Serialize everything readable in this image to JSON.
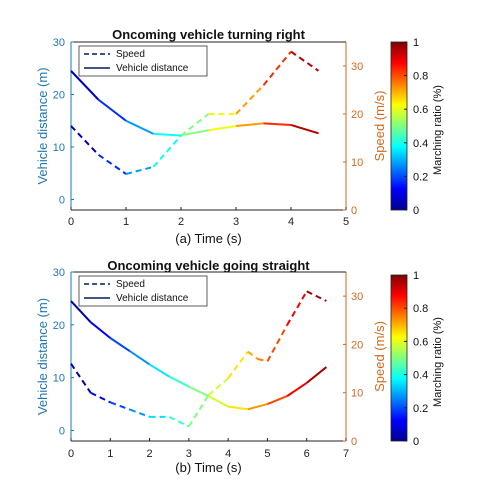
{
  "chart_data": [
    {
      "type": "line",
      "title": "Oncoming vehicle turning right",
      "xlabel": "(a) Time (s)",
      "ylabel_left": "Vehicle distance (m)",
      "ylabel_right": "Speed (m/s)",
      "xlim": [
        0,
        5
      ],
      "ylim_left": [
        -2,
        30
      ],
      "ylim_right": [
        0,
        35
      ],
      "xticks": [
        "0",
        "1",
        "2",
        "3",
        "4",
        "5"
      ],
      "yticks_left": [
        "0",
        "10",
        "20",
        "30"
      ],
      "yticks_right": [
        "0",
        "10",
        "20",
        "30"
      ],
      "legend": [
        "Speed",
        "Vehicle distance"
      ],
      "series": [
        {
          "name": "Speed",
          "axis": "right",
          "style": "dashed",
          "x": [
            0,
            0.5,
            1,
            1.5,
            2,
            2.5,
            3,
            3.5,
            4,
            4.5
          ],
          "y": [
            17.5,
            11.5,
            7.5,
            9,
            15.5,
            20,
            20,
            26,
            33,
            29
          ]
        },
        {
          "name": "Vehicle distance",
          "axis": "left",
          "style": "solid",
          "x": [
            0,
            0.5,
            1,
            1.5,
            2,
            2.5,
            3,
            3.5,
            4,
            4.5
          ],
          "y": [
            24.5,
            19,
            15,
            12.5,
            12.2,
            13.2,
            14,
            14.5,
            14.2,
            12.6
          ]
        }
      ],
      "colorbar": {
        "label": "Marching ratio (%)",
        "range": [
          0,
          1
        ],
        "ticks": [
          "0",
          "0.2",
          "0.4",
          "0.6",
          "0.8",
          "1"
        ]
      },
      "grid": false,
      "legend_position": "top-left"
    },
    {
      "type": "line",
      "title": "Oncoming vehicle going straight",
      "xlabel": "(b) Time (s)",
      "ylabel_left": "Vehicle distance (m)",
      "ylabel_right": "Speed (m/s)",
      "xlim": [
        0,
        7
      ],
      "ylim_left": [
        -2,
        30
      ],
      "ylim_right": [
        0,
        35
      ],
      "xticks": [
        "0",
        "1",
        "2",
        "3",
        "4",
        "5",
        "6",
        "7"
      ],
      "yticks_left": [
        "0",
        "10",
        "20",
        "30"
      ],
      "yticks_right": [
        "0",
        "10",
        "20",
        "30"
      ],
      "legend": [
        "Speed",
        "Vehicle distance"
      ],
      "series": [
        {
          "name": "Speed",
          "axis": "right",
          "style": "dashed",
          "x": [
            0,
            0.5,
            1,
            1.5,
            2,
            2.5,
            3,
            3.5,
            4,
            4.5,
            4.75,
            5,
            5.5,
            6,
            6.5
          ],
          "y": [
            16,
            10,
            8,
            6.5,
            5,
            5,
            3,
            9.5,
            13,
            18.5,
            17,
            16.5,
            24,
            31,
            29
          ]
        },
        {
          "name": "Vehicle distance",
          "axis": "left",
          "style": "solid",
          "x": [
            0,
            0.5,
            1,
            1.5,
            2,
            2.5,
            3,
            3.5,
            4,
            4.5,
            5,
            5.5,
            6,
            6.5
          ],
          "y": [
            24.5,
            20.5,
            17.5,
            15,
            12.5,
            10.2,
            8.3,
            6.5,
            4.5,
            4,
            5,
            6.5,
            9,
            12
          ]
        }
      ],
      "colorbar": {
        "label": "Marching ratio (%)",
        "range": [
          0,
          1
        ],
        "ticks": [
          "0",
          "0.2",
          "0.4",
          "0.6",
          "0.8",
          "1"
        ]
      },
      "grid": false,
      "legend_position": "top-left"
    }
  ]
}
